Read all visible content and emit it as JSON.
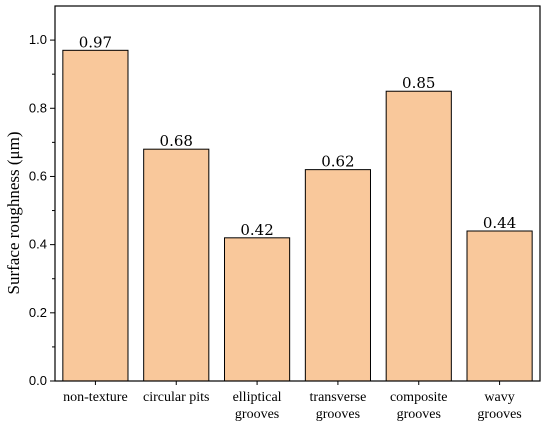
{
  "chart_data": {
    "type": "bar",
    "title": "",
    "xlabel": "",
    "ylabel": "Surface roughness (μm)",
    "ylim": [
      0,
      1.1
    ],
    "yticks": [
      "0.0",
      "0.2",
      "0.4",
      "0.6",
      "0.8",
      "1.0"
    ],
    "categories": [
      [
        "non-texture"
      ],
      [
        "circular pits"
      ],
      [
        "elliptical",
        "grooves"
      ],
      [
        "transverse",
        "grooves"
      ],
      [
        "composite",
        "grooves"
      ],
      [
        "wavy",
        "grooves"
      ]
    ],
    "values": [
      0.97,
      0.68,
      0.42,
      0.62,
      0.85,
      0.44
    ],
    "value_labels": [
      "0.97",
      "0.68",
      "0.42",
      "0.62",
      "0.85",
      "0.44"
    ],
    "bar_color": "#f9c89b",
    "grid": false
  }
}
